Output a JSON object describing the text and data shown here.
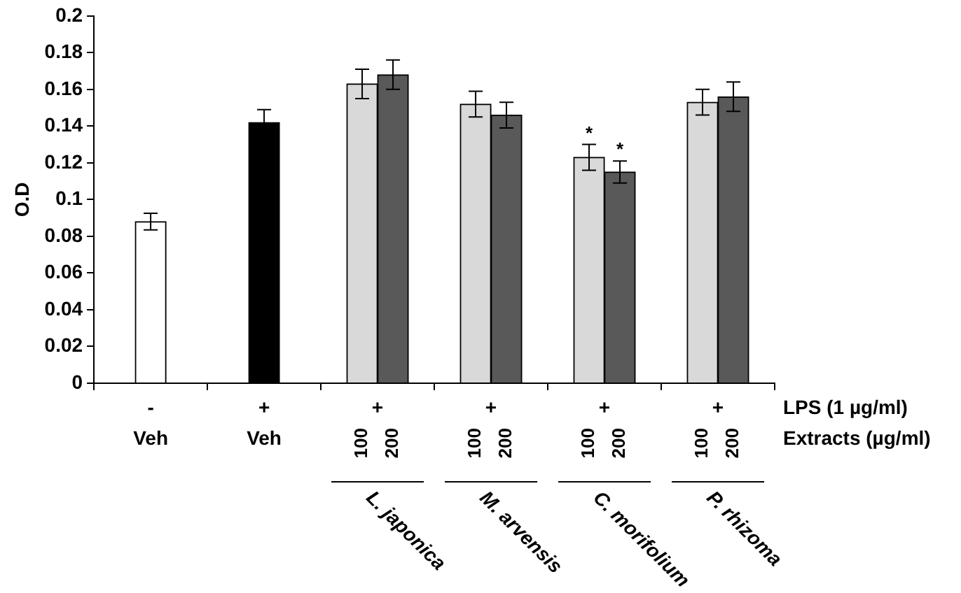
{
  "chart_data": {
    "type": "bar",
    "ylabel": "O.D",
    "categories": [
      "Veh",
      "Veh",
      "L. japonica",
      "M. arvensis",
      "C. morifolium",
      "P. rhizoma"
    ],
    "series": [
      {
        "colors": [
          "#ffffff",
          "#000000",
          null,
          null,
          null,
          null
        ],
        "values": [
          0.088,
          0.142,
          null,
          null,
          null,
          null
        ],
        "errors": [
          0.0045,
          0.007,
          null,
          null,
          null,
          null
        ]
      },
      {
        "name": "100",
        "color": "#d9d9d9",
        "values": [
          null,
          null,
          0.163,
          0.152,
          0.123,
          0.153
        ],
        "errors": [
          null,
          null,
          0.008,
          0.007,
          0.007,
          0.007
        ],
        "value_labels": [
          null,
          null,
          null,
          null,
          "*",
          null
        ]
      },
      {
        "name": "200",
        "color": "#595959",
        "values": [
          null,
          null,
          0.168,
          0.146,
          0.115,
          0.156
        ],
        "errors": [
          null,
          null,
          0.008,
          0.007,
          0.006,
          0.008
        ],
        "value_labels": [
          null,
          null,
          null,
          null,
          "*",
          null
        ]
      }
    ],
    "ylim": [
      0,
      0.2
    ],
    "yticks": [
      0,
      0.02,
      0.04,
      0.06,
      0.08,
      0.1,
      0.12,
      0.14,
      0.16,
      0.18,
      0.2
    ],
    "annotations": [
      "-",
      "+",
      "+",
      "+",
      "+",
      "+",
      "LPS (1 µg/ml)",
      "Extracts (µg/ml)"
    ]
  }
}
